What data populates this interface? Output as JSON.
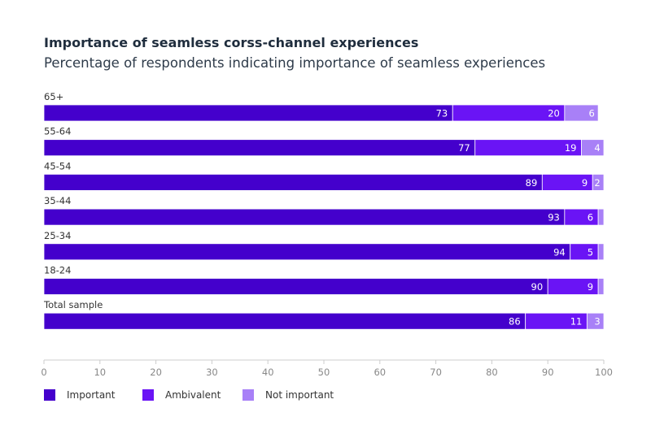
{
  "chart_data": {
    "type": "bar",
    "orientation": "horizontal",
    "stacked": true,
    "title": "Importance of seamless corss-channel experiences",
    "subtitle": "Percentage of respondents indicating importance of seamless experiences",
    "categories": [
      "65+",
      "55-64",
      "45-54",
      "35-44",
      "25-34",
      "18-24",
      "Total sample"
    ],
    "series": [
      {
        "name": "Important",
        "color": "#4400cc",
        "values": [
          73,
          77,
          89,
          93,
          94,
          90,
          86
        ]
      },
      {
        "name": "Ambivalent",
        "color": "#6a14f5",
        "values": [
          20,
          19,
          9,
          6,
          5,
          9,
          11
        ]
      },
      {
        "name": "Not important",
        "color": "#a880f7",
        "values": [
          6,
          4,
          2,
          1,
          1,
          1,
          3
        ]
      }
    ],
    "shown_labels": [
      [
        true,
        true,
        true
      ],
      [
        true,
        true,
        true
      ],
      [
        true,
        true,
        true
      ],
      [
        true,
        true,
        false
      ],
      [
        true,
        true,
        false
      ],
      [
        true,
        true,
        false
      ],
      [
        true,
        true,
        true
      ]
    ],
    "xlim": [
      0,
      100
    ],
    "xticks": [
      0,
      10,
      20,
      30,
      40,
      50,
      60,
      70,
      80,
      90,
      100
    ],
    "grid": false,
    "legend": "bottom-left"
  }
}
